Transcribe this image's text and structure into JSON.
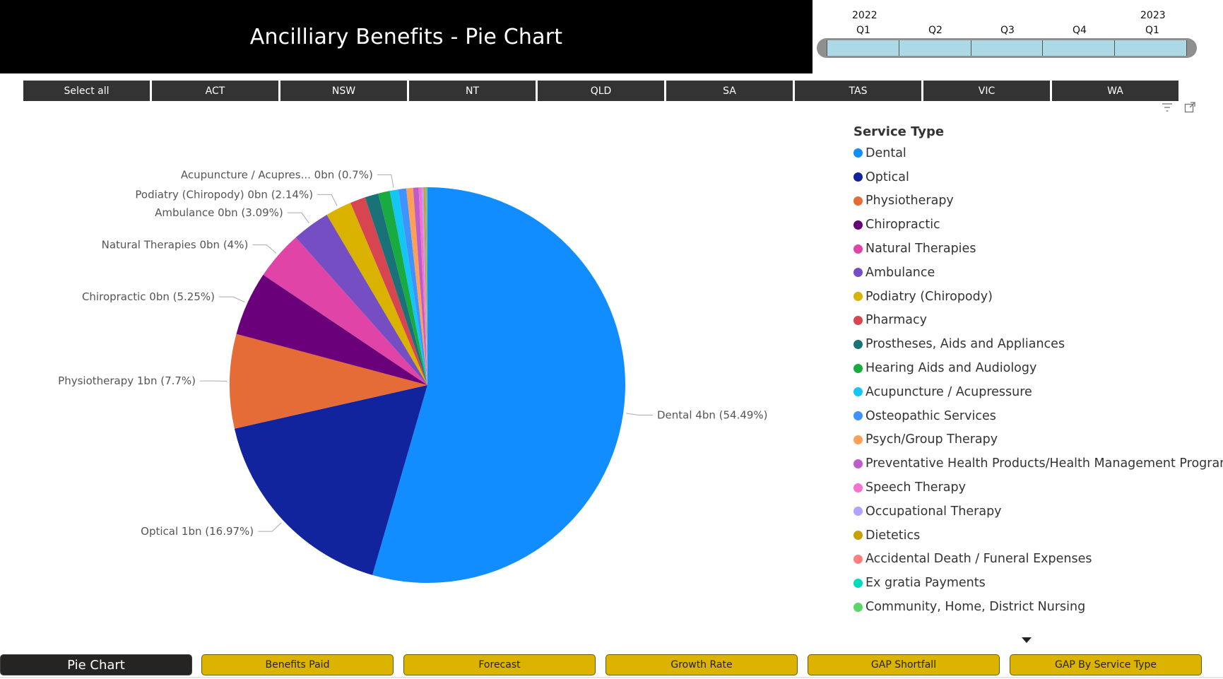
{
  "header": {
    "title": "Ancilliary Benefits - Pie Chart"
  },
  "timeline": {
    "years": [
      {
        "label": "2022",
        "slot": 0
      },
      {
        "label": "2023",
        "slot": 4
      }
    ],
    "quarters": [
      "Q1",
      "Q2",
      "Q3",
      "Q4",
      "Q1"
    ],
    "bar_color": "#add8e6"
  },
  "state_slicer": [
    "Select all",
    "ACT",
    "NSW",
    "NT",
    "QLD",
    "SA",
    "TAS",
    "VIC",
    "WA"
  ],
  "visual_icons": [
    "filter-icon",
    "focus-mode-icon"
  ],
  "chart_data": {
    "type": "pie",
    "legend_title": "Service Type",
    "legend_position": "right",
    "slices": [
      {
        "name": "Dental",
        "value": 54.49,
        "label": "Dental 4bn (54.49%)",
        "color": "#118dff"
      },
      {
        "name": "Optical",
        "value": 16.97,
        "label": "Optical 1bn (16.97%)",
        "color": "#12239e"
      },
      {
        "name": "Physiotherapy",
        "value": 7.7,
        "label": "Physiotherapy 1bn (7.7%)",
        "color": "#e66c37"
      },
      {
        "name": "Chiropractic",
        "value": 5.25,
        "label": "Chiropractic 0bn (5.25%)",
        "color": "#6b007b"
      },
      {
        "name": "Natural Therapies",
        "value": 4.0,
        "label": "Natural Therapies 0bn (4%)",
        "color": "#e044a7"
      },
      {
        "name": "Ambulance",
        "value": 3.09,
        "label": "Ambulance 0bn (3.09%)",
        "color": "#744ec2"
      },
      {
        "name": "Podiatry (Chiropody)",
        "value": 2.14,
        "label": "Podiatry (Chiropody) 0bn (2.14%)",
        "color": "#d9b300"
      },
      {
        "name": "Pharmacy",
        "value": 1.25,
        "color": "#d64550"
      },
      {
        "name": "Prostheses, Aids and Appliances",
        "value": 1.1,
        "color": "#197278"
      },
      {
        "name": "Hearing Aids and Audiology",
        "value": 0.95,
        "color": "#1aab40"
      },
      {
        "name": "Acupuncture / Acupressure",
        "value": 0.7,
        "label": "Acupuncture / Acupres... 0bn (0.7%)",
        "color": "#15c6f4"
      },
      {
        "name": "Osteopathic Services",
        "value": 0.65,
        "color": "#4092ff"
      },
      {
        "name": "Psych/Group Therapy",
        "value": 0.55,
        "color": "#ffa058"
      },
      {
        "name": "Preventative Health Products/Health Management Program",
        "value": 0.45,
        "color": "#be5dc9"
      },
      {
        "name": "Speech Therapy",
        "value": 0.25,
        "color": "#f472d0"
      },
      {
        "name": "Occupational Therapy",
        "value": 0.15,
        "color": "#b5a1ff"
      },
      {
        "name": "Dietetics",
        "value": 0.12,
        "color": "#c4a200"
      },
      {
        "name": "Accidental Death / Funeral Expenses",
        "value": 0.08,
        "color": "#ff8080"
      },
      {
        "name": "Ex gratia Payments",
        "value": 0.06,
        "color": "#00dbbc"
      },
      {
        "name": "Community, Home, District Nursing",
        "value": 0.05,
        "color": "#5bd667"
      }
    ]
  },
  "nav": {
    "active": "Pie Chart",
    "buttons": [
      "Benefits Paid",
      "Forecast",
      "Growth Rate",
      "GAP Shortfall",
      "GAP By Service Type"
    ],
    "active_color": "#252423",
    "button_color": "#dcb400"
  }
}
